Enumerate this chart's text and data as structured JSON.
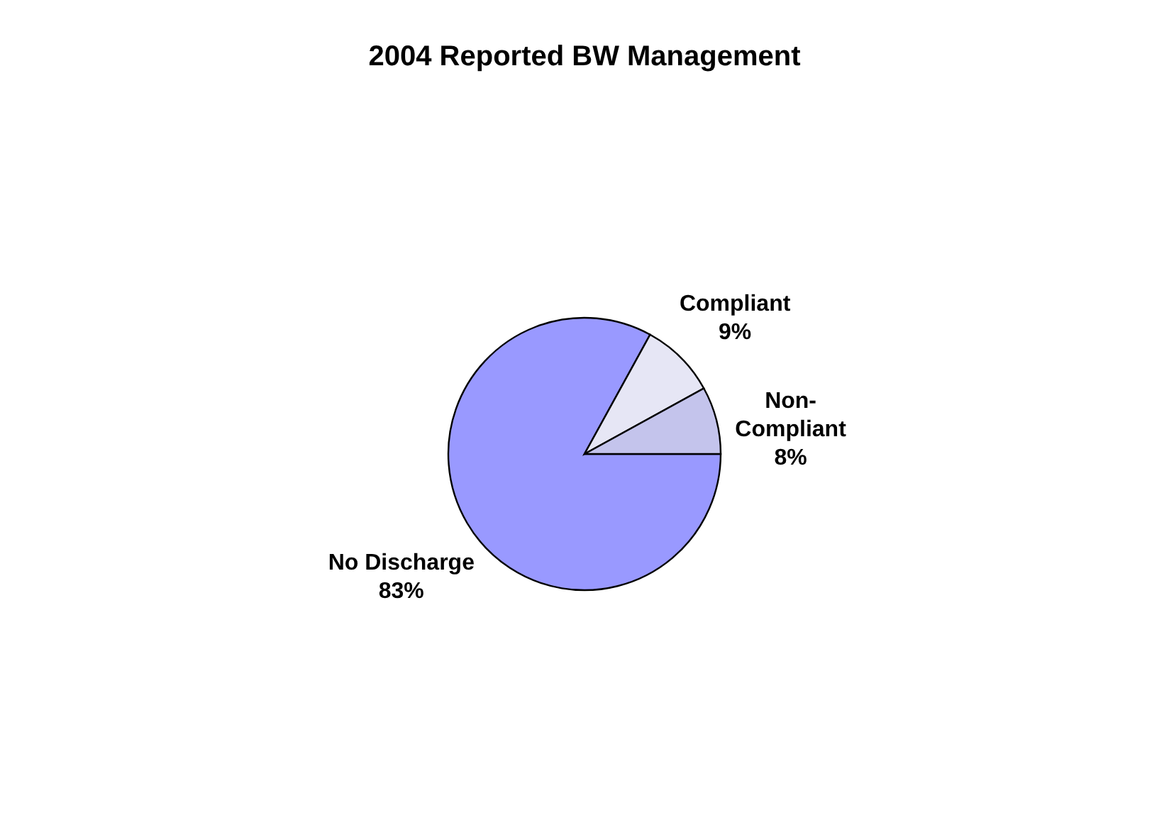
{
  "chart_data": {
    "type": "pie",
    "title": "2004 Reported BW Management",
    "categories": [
      "No Discharge",
      "Compliant",
      "Non-Compliant"
    ],
    "values": [
      83,
      9,
      8
    ],
    "value_labels": [
      "83%",
      "9%",
      "8%"
    ],
    "colors": [
      "#9999ff",
      "#e6e6f5",
      "#c4c4ec"
    ],
    "data_labels": true,
    "legend": false
  }
}
